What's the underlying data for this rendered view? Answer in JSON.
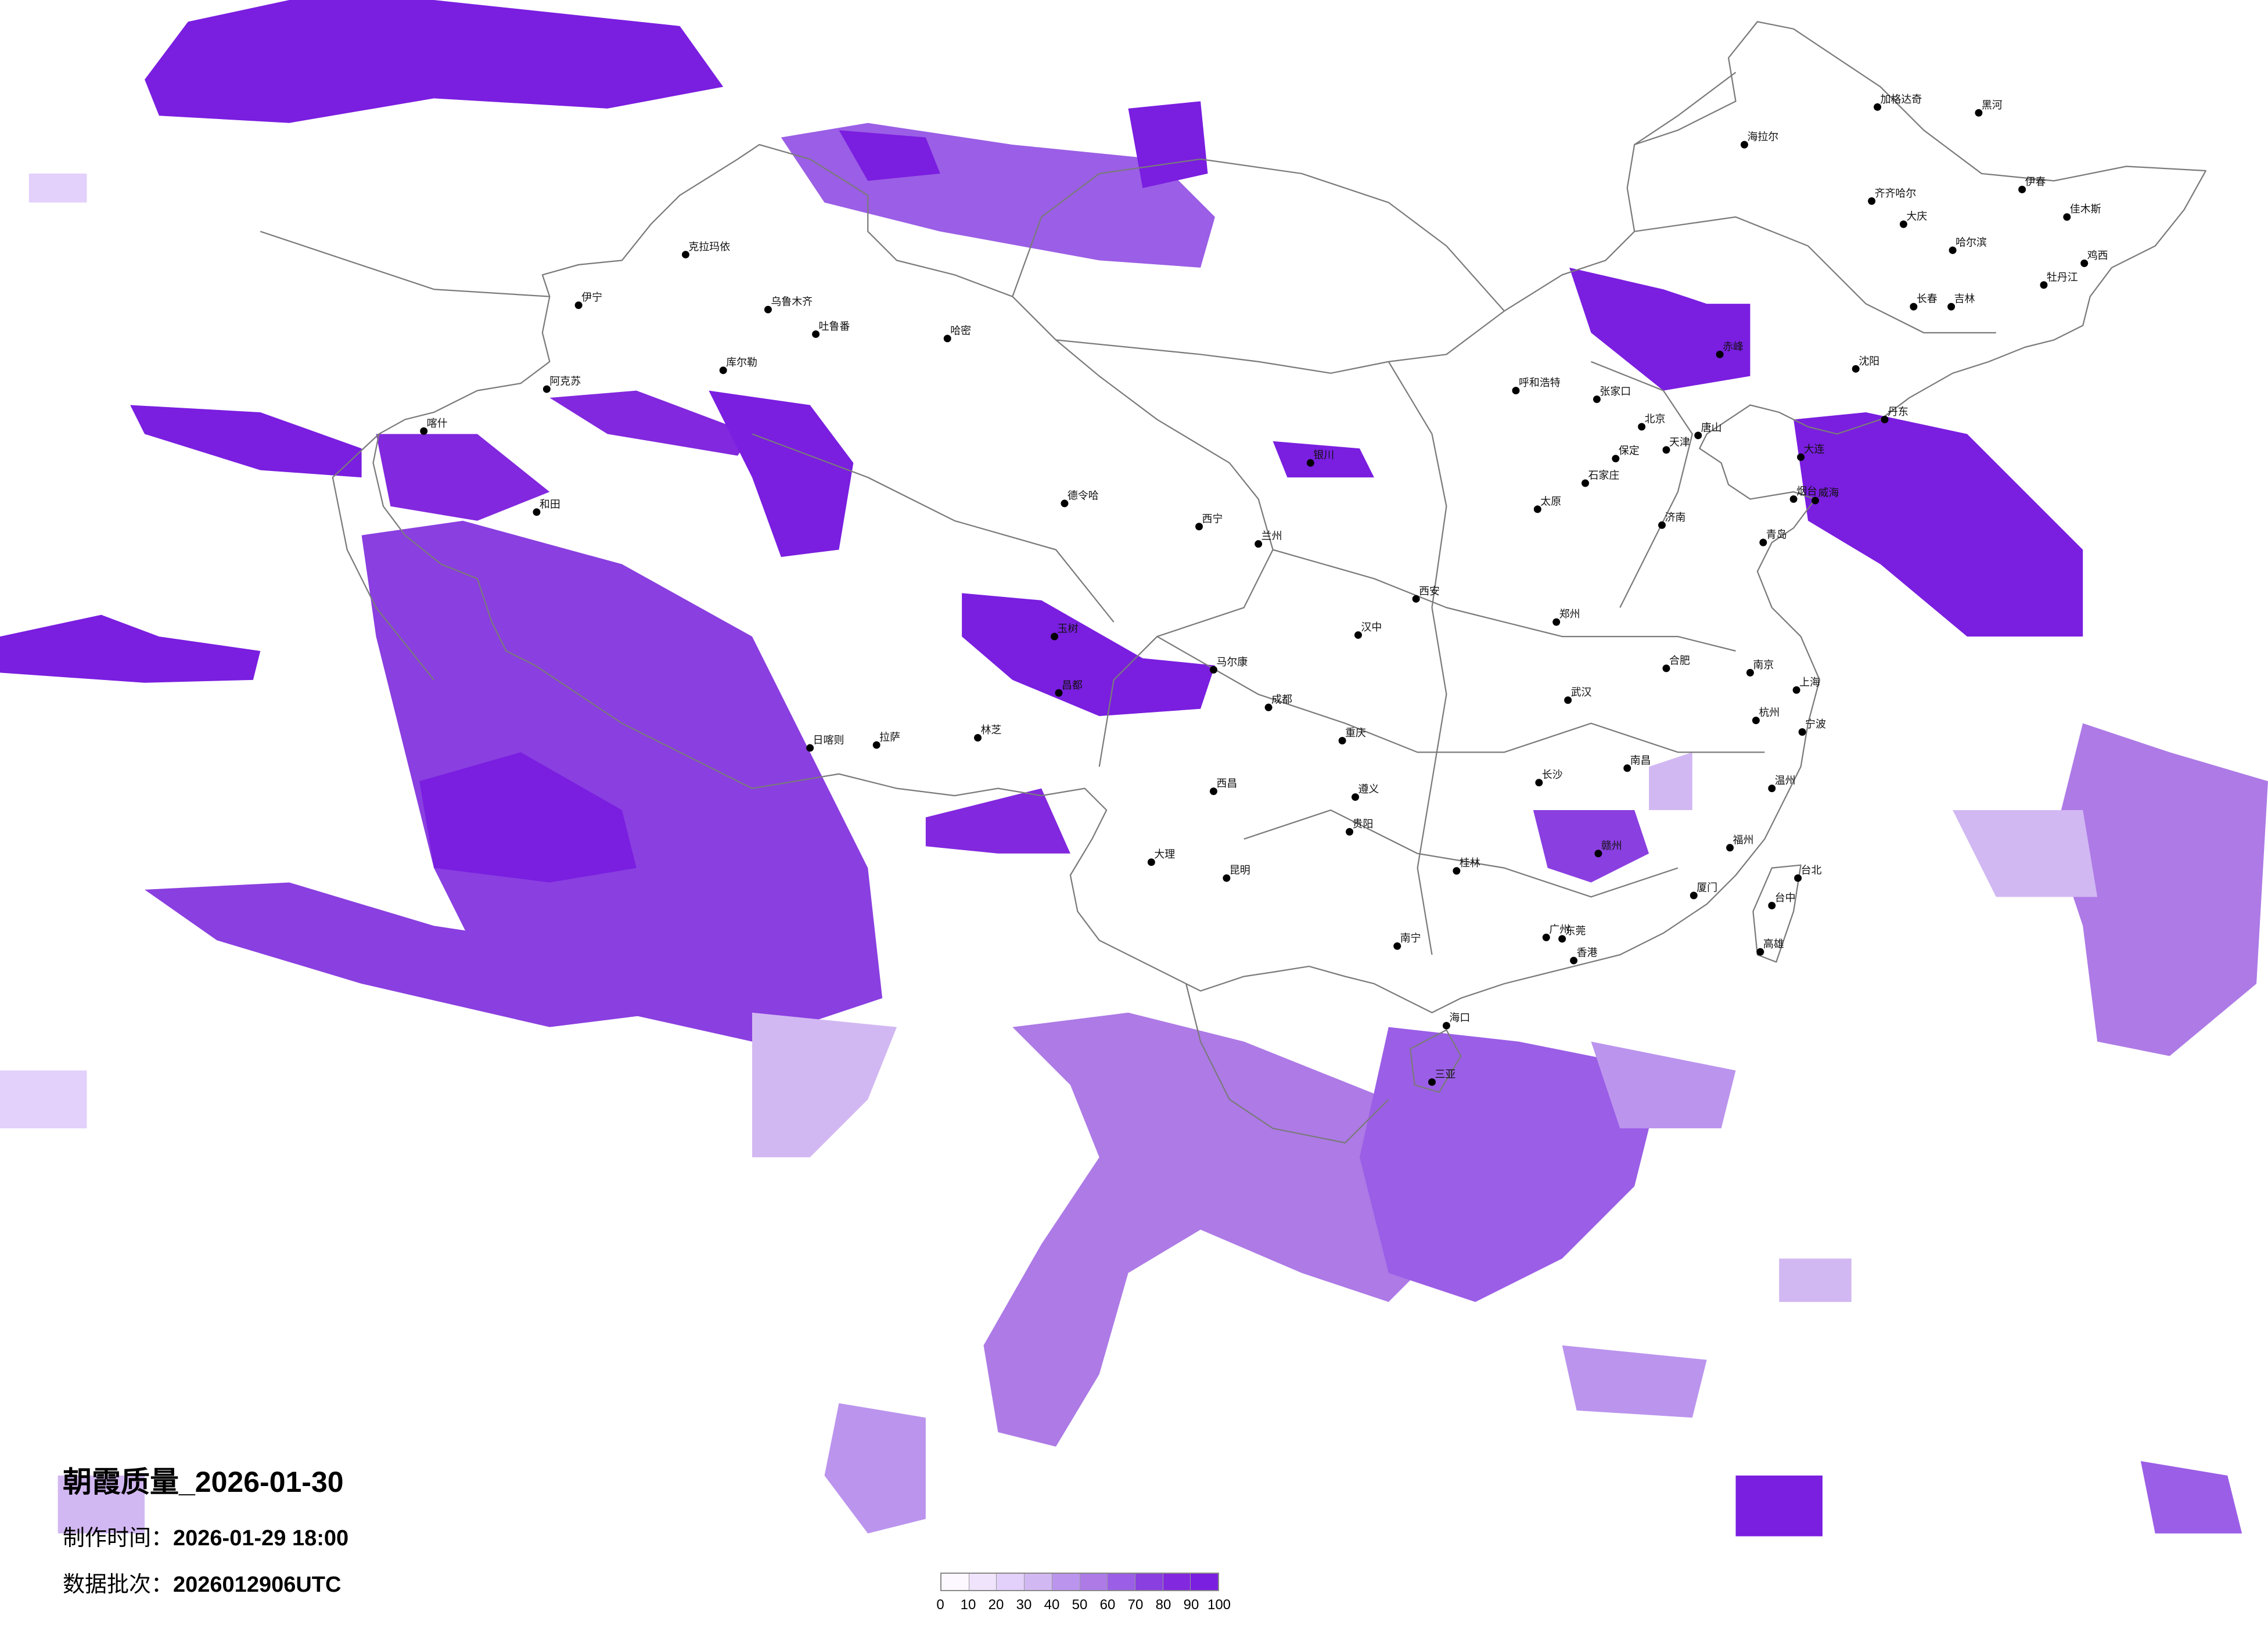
{
  "title": "朝霞质量_2026-01-30",
  "production_time": {
    "label": "制作时间：",
    "value": "2026-01-29 18:00"
  },
  "data_batch": {
    "label": "数据批次：",
    "value": "2026012906UTC"
  },
  "legend": {
    "ticks": [
      "0",
      "10",
      "20",
      "30",
      "40",
      "50",
      "60",
      "70",
      "80",
      "90",
      "100"
    ],
    "colors": [
      "#fdf8ff",
      "#efe4fb",
      "#e3d0fb",
      "#d2b8f2",
      "#bb94ee",
      "#ad7ae6",
      "#9b5ee6",
      "#8a3fe0",
      "#8228de",
      "#7a1ee0"
    ]
  },
  "cities": [
    "北京",
    "天津",
    "石家庄",
    "济南",
    "青岛",
    "大连",
    "沈阳",
    "唐山",
    "赤峰",
    "丹东",
    "烟台",
    "威海",
    "张家口",
    "保定",
    "哈尔滨",
    "长春",
    "吉林",
    "齐齐哈尔",
    "大庆",
    "黑河",
    "海拉尔",
    "加格达奇",
    "佳木斯",
    "牡丹江",
    "伊春",
    "鸡西",
    "上海",
    "杭州",
    "南京",
    "武汉",
    "长沙",
    "南昌",
    "福州",
    "厦门",
    "广州",
    "香港",
    "东莞",
    "南宁",
    "桂林",
    "贵阳",
    "重庆",
    "台北",
    "台中",
    "高雄",
    "赣州",
    "温州",
    "宁波",
    "成都",
    "西宁",
    "兰州",
    "西安",
    "昆明",
    "大理",
    "汉中",
    "遵义",
    "西昌",
    "马尔康",
    "昌都",
    "玉树",
    "德令哈",
    "呼和浩特",
    "太原",
    "郑州",
    "银川",
    "合肥",
    "乌鲁木齐",
    "克拉玛依",
    "伊宁",
    "库尔勒",
    "哈密",
    "吐鲁番",
    "阿克苏",
    "和田",
    "喀什",
    "日喀则",
    "拉萨",
    "林芝",
    "海口",
    "三亚"
  ]
}
